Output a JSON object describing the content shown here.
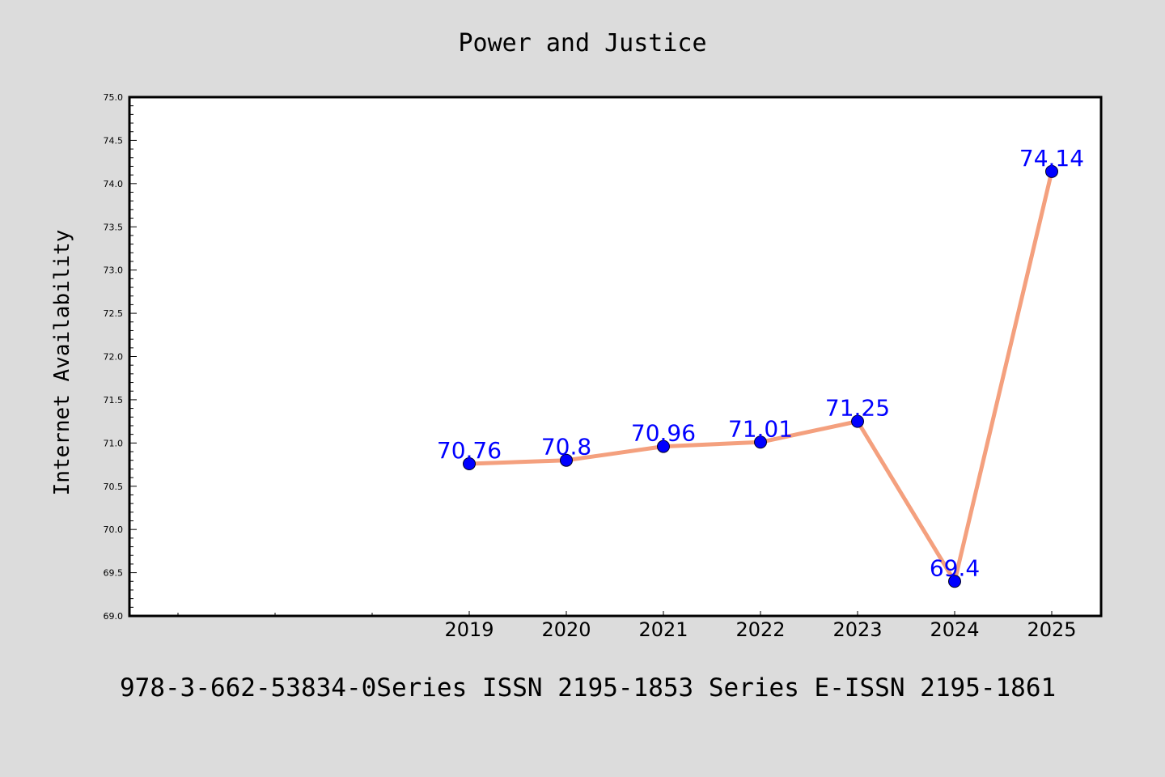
{
  "chart_data": {
    "type": "line",
    "title": "Power and Justice",
    "xlabel": "",
    "ylabel": "Internet Availability",
    "categories": [
      "2019",
      "2020",
      "2021",
      "2022",
      "2023",
      "2024",
      "2025"
    ],
    "series": [
      {
        "values": [
          70.76,
          70.8,
          70.96,
          71.01,
          71.25,
          69.4,
          74.14
        ],
        "labels": [
          "70.76",
          "70.8",
          "70.96",
          "71.01",
          "71.25",
          "69.4",
          "74.14"
        ],
        "line_color": "#f4a07e",
        "marker_color": "#0000ff"
      }
    ],
    "ylim": [
      69.0,
      75.0
    ],
    "yticks": [
      "69.0",
      "69.5",
      "70.0",
      "70.5",
      "71.0",
      "71.5",
      "72.0",
      "72.5",
      "73.0",
      "73.5",
      "74.0",
      "74.5",
      "75.0"
    ],
    "grid": false,
    "legend": "none"
  },
  "footer": {
    "text": "978-3-662-53834-0Series ISSN 2195-1853 Series E-ISSN 2195-1861"
  },
  "colors": {
    "background": "#dcdcdc",
    "plot_background": "#ffffff",
    "line": "#f4a07e",
    "marker": "#0000ff",
    "data_label": "#0000ff"
  }
}
